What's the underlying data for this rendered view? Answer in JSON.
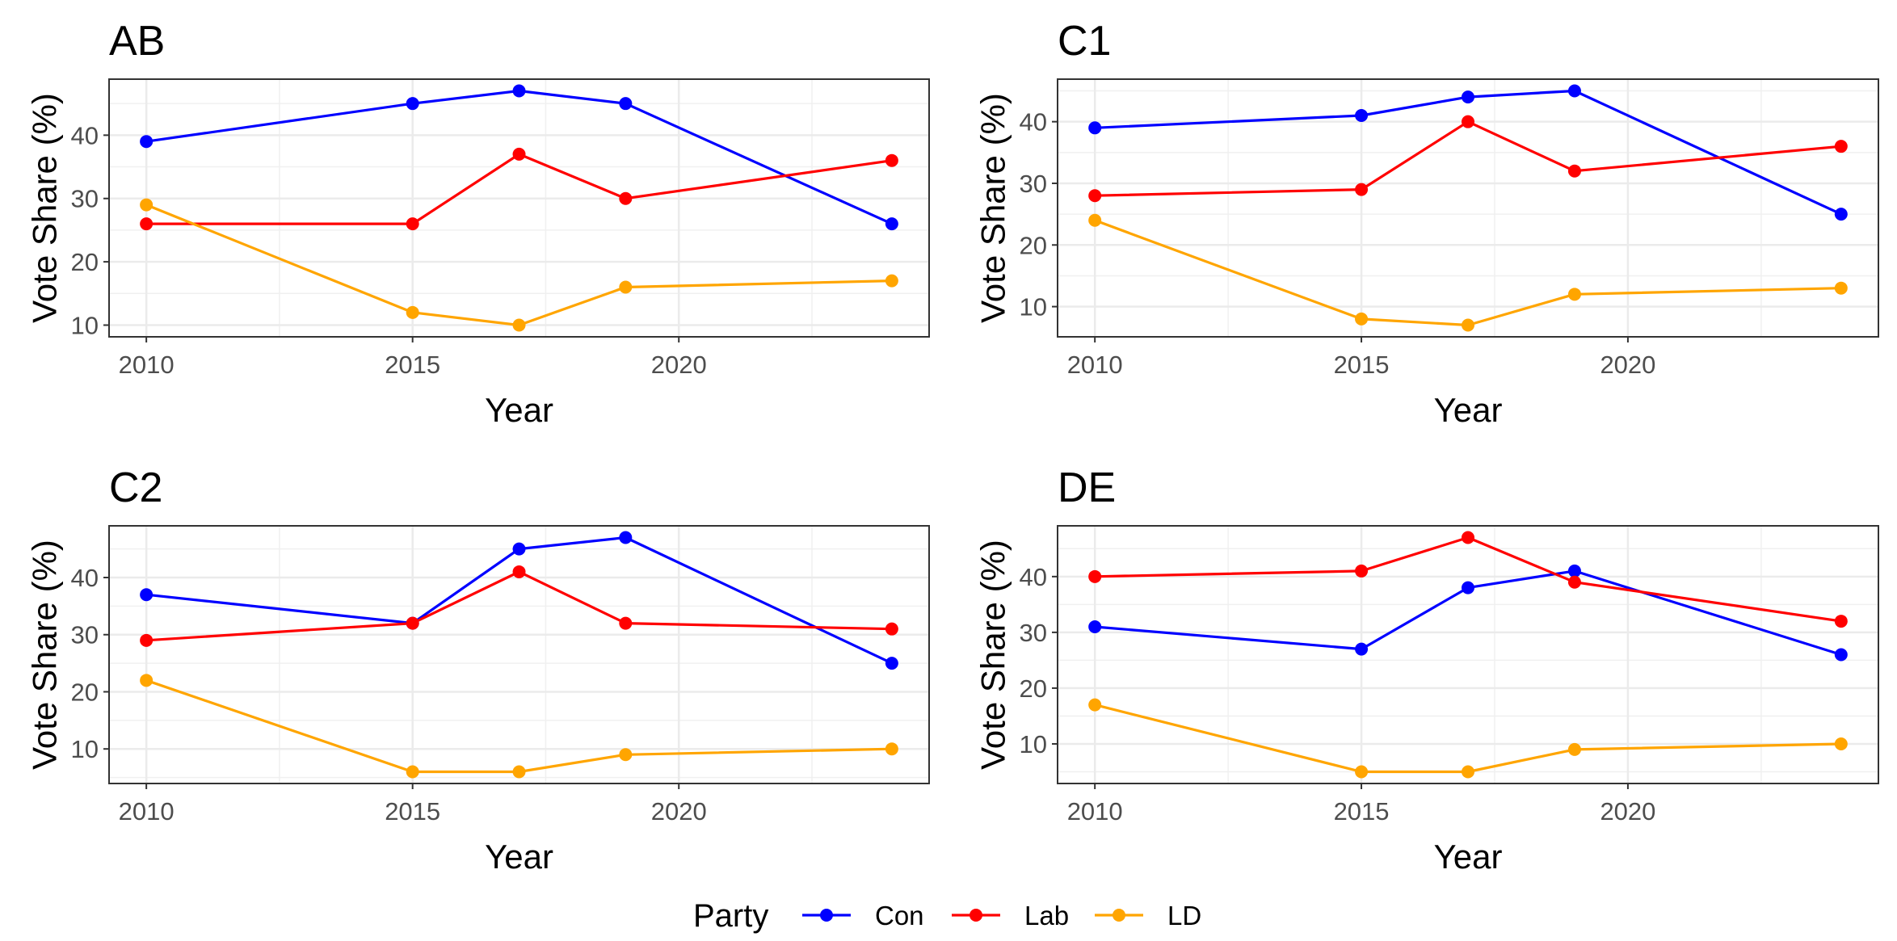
{
  "chart_data": {
    "type": "line",
    "x": [
      2010,
      2015,
      2017,
      2019,
      2024
    ],
    "xlabel": "Year",
    "ylabel": "Vote Share (%)",
    "x_ticks": [
      "2010",
      "2015",
      "2020"
    ],
    "xlim": [
      2009.3,
      2024.7
    ],
    "grid": true,
    "legend": {
      "title": "Party",
      "position": "bottom",
      "entries": [
        {
          "name": "Con",
          "color": "#0000ff"
        },
        {
          "name": "Lab",
          "color": "#ff0000"
        },
        {
          "name": "LD",
          "color": "#ffa500"
        }
      ]
    },
    "panels": [
      {
        "title": "AB",
        "ylim": [
          8.15,
          48.85
        ],
        "y_ticks": [
          "10",
          "20",
          "30",
          "40"
        ],
        "series": [
          {
            "name": "Con",
            "values": [
              39,
              45,
              47,
              45,
              26
            ]
          },
          {
            "name": "Lab",
            "values": [
              26,
              26,
              37,
              30,
              36
            ]
          },
          {
            "name": "LD",
            "values": [
              29,
              12,
              10,
              16,
              17
            ]
          }
        ]
      },
      {
        "title": "C1",
        "ylim": [
          5.1,
          46.9
        ],
        "y_ticks": [
          "10",
          "20",
          "30",
          "40"
        ],
        "series": [
          {
            "name": "Con",
            "values": [
              39,
              41,
              44,
              45,
              25
            ]
          },
          {
            "name": "Lab",
            "values": [
              28,
              29,
              40,
              32,
              36
            ]
          },
          {
            "name": "LD",
            "values": [
              24,
              8,
              7,
              12,
              13
            ]
          }
        ]
      },
      {
        "title": "C2",
        "ylim": [
          3.95,
          49.05
        ],
        "y_ticks": [
          "10",
          "20",
          "30",
          "40"
        ],
        "series": [
          {
            "name": "Con",
            "values": [
              37,
              32,
              45,
              47,
              25
            ]
          },
          {
            "name": "Lab",
            "values": [
              29,
              32,
              41,
              32,
              31
            ]
          },
          {
            "name": "LD",
            "values": [
              22,
              6,
              6,
              9,
              10
            ]
          }
        ]
      },
      {
        "title": "DE",
        "ylim": [
          2.9,
          49.1
        ],
        "y_ticks": [
          "10",
          "20",
          "30",
          "40"
        ],
        "series": [
          {
            "name": "Con",
            "values": [
              31,
              27,
              38,
              41,
              26
            ]
          },
          {
            "name": "Lab",
            "values": [
              40,
              41,
              47,
              39,
              32
            ]
          },
          {
            "name": "LD",
            "values": [
              17,
              5,
              5,
              9,
              10
            ]
          }
        ]
      }
    ]
  }
}
